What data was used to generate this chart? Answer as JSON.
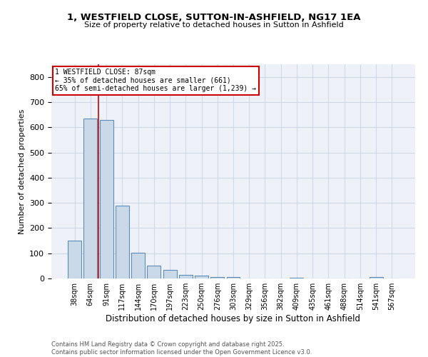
{
  "title1": "1, WESTFIELD CLOSE, SUTTON-IN-ASHFIELD, NG17 1EA",
  "title2": "Size of property relative to detached houses in Sutton in Ashfield",
  "xlabel": "Distribution of detached houses by size in Sutton in Ashfield",
  "ylabel": "Number of detached properties",
  "categories": [
    "38sqm",
    "64sqm",
    "91sqm",
    "117sqm",
    "144sqm",
    "170sqm",
    "197sqm",
    "223sqm",
    "250sqm",
    "276sqm",
    "303sqm",
    "329sqm",
    "356sqm",
    "382sqm",
    "409sqm",
    "435sqm",
    "461sqm",
    "488sqm",
    "514sqm",
    "541sqm",
    "567sqm"
  ],
  "values": [
    150,
    635,
    630,
    290,
    103,
    52,
    35,
    13,
    12,
    7,
    5,
    0,
    0,
    0,
    3,
    0,
    0,
    0,
    0,
    5,
    0
  ],
  "bar_color": "#c9d9e8",
  "bar_edge_color": "#5b8db8",
  "grid_color": "#d0d8e8",
  "bg_color": "#eef2f8",
  "vline_color": "#cc0000",
  "annotation_text": "1 WESTFIELD CLOSE: 87sqm\n← 35% of detached houses are smaller (661)\n65% of semi-detached houses are larger (1,239) →",
  "annotation_box_color": "#cc0000",
  "footer1": "Contains HM Land Registry data © Crown copyright and database right 2025.",
  "footer2": "Contains public sector information licensed under the Open Government Licence v3.0.",
  "ylim": [
    0,
    850
  ],
  "yticks": [
    0,
    100,
    200,
    300,
    400,
    500,
    600,
    700,
    800
  ]
}
